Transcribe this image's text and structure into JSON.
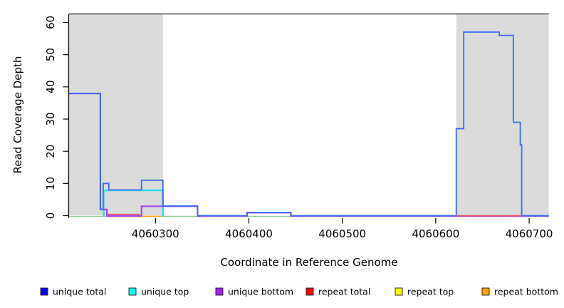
{
  "chart_data": {
    "type": "line",
    "subtype": "step-coverage-plot",
    "title": "",
    "xlabel": "Coordinate in Reference Genome",
    "ylabel": "Read Coverage Depth",
    "xlim": [
      4060207.5,
      4060721
    ],
    "ylim": [
      0,
      62.6
    ],
    "grid": false,
    "legend_position": "bottom",
    "xtick_values": [
      4060300,
      4060400,
      4060500,
      4060600,
      4060700
    ],
    "xtick_labels": [
      "4060300",
      "4060400",
      "4060500",
      "4060600",
      "4060700"
    ],
    "ytick_values": [
      0,
      10,
      20,
      30,
      40,
      50,
      60
    ],
    "ytick_labels": [
      "0",
      "10",
      "20",
      "30",
      "40",
      "50",
      "60"
    ],
    "shade_color": "#DBDBDB",
    "shaded_regions": [
      {
        "from": 4060207.5,
        "to": 4060308
      },
      {
        "from": 4060622,
        "to": 4060721
      }
    ],
    "baseline": {
      "y": 0,
      "color": "#99CC99"
    },
    "series": [
      {
        "key": "unique_total",
        "name": "unique total",
        "color": "#0000FF",
        "line_color": "#3D6BEB",
        "steps": [
          [
            4060207.5,
            38
          ],
          [
            4060241,
            2
          ],
          [
            4060244,
            10
          ],
          [
            4060250,
            8
          ],
          [
            4060285,
            11
          ],
          [
            4060308,
            3
          ],
          [
            4060345,
            0
          ],
          [
            4060398,
            1
          ],
          [
            4060445,
            0
          ],
          [
            4060622,
            27
          ],
          [
            4060630,
            57
          ],
          [
            4060668,
            56
          ],
          [
            4060683,
            29
          ],
          [
            4060690.5,
            22
          ],
          [
            4060692,
            0
          ],
          [
            4060721,
            null
          ]
        ]
      },
      {
        "key": "unique_top",
        "name": "unique top",
        "color": "#00FFFF",
        "line_color": "#38DDE8",
        "steps": [
          [
            4060244,
            0
          ],
          [
            4060244.5,
            8
          ],
          [
            4060308,
            0
          ],
          [
            4060309,
            null
          ]
        ]
      },
      {
        "key": "unique_bottom",
        "name": "unique bottom",
        "color": "#A020F0",
        "line_color": "#A04AE8",
        "steps": [
          [
            4060207.5,
            38
          ],
          [
            4060241,
            2
          ],
          [
            4060248,
            0
          ],
          [
            4060285,
            3
          ],
          [
            4060345,
            0
          ],
          [
            4060398,
            1
          ],
          [
            4060445,
            0
          ],
          [
            4060721,
            null
          ]
        ]
      },
      {
        "key": "repeat_total",
        "name": "repeat total",
        "color": "#FF0000",
        "line_color": "#E85060",
        "steps": [
          [
            4060248,
            0.45
          ],
          [
            4060283,
            null
          ],
          [
            4060622,
            0
          ],
          [
            4060692,
            null
          ]
        ]
      },
      {
        "key": "repeat_top",
        "name": "repeat top",
        "color": "#FFFF00",
        "line_color": "#FFFF00",
        "steps": []
      },
      {
        "key": "repeat_bottom",
        "name": "repeat bottom",
        "color": "#FFA500",
        "line_color": "#FFA520",
        "steps": [
          [
            4060246,
            0
          ],
          [
            4060307,
            null
          ]
        ]
      }
    ]
  }
}
